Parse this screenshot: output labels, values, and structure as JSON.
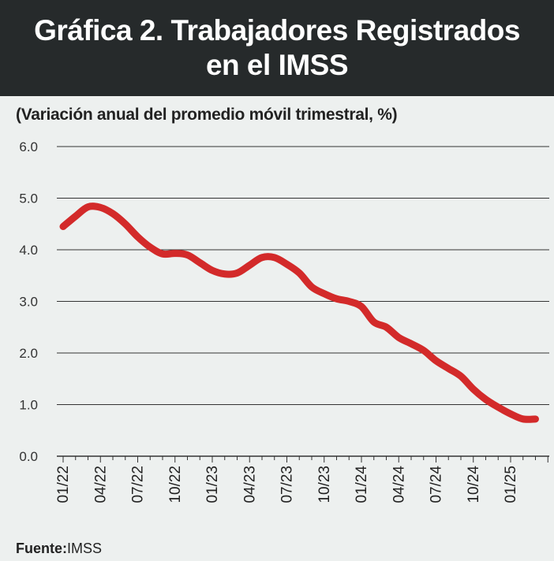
{
  "header": {
    "title_line1": "Gráfica 2. Trabajadores Registrados",
    "title_line2": "en el IMSS"
  },
  "subtitle": "(Variación anual del promedio móvil trimestral, %)",
  "source": {
    "label": "Fuente:",
    "value": "IMSS"
  },
  "colors": {
    "line": "#d32a2a",
    "header_bg": "#262a2b",
    "background": "#edf0ef",
    "grid": "#333333"
  },
  "chart_data": {
    "type": "line",
    "title": "",
    "xlabel": "",
    "ylabel": "",
    "ylim": [
      0,
      6
    ],
    "yticks": [
      "0.0",
      "1.0",
      "2.0",
      "3.0",
      "4.0",
      "5.0",
      "6.0"
    ],
    "grid": true,
    "xtick_labels": [
      "01/22",
      "04/22",
      "07/22",
      "10/22",
      "01/23",
      "04/23",
      "07/23",
      "10/23",
      "01/24",
      "04/24",
      "07/24",
      "10/24",
      "01/25"
    ],
    "series": [
      {
        "x": [
          "01/22",
          "02/22",
          "03/22",
          "04/22",
          "05/22",
          "06/22",
          "07/22",
          "08/22",
          "09/22",
          "10/22",
          "11/22",
          "12/22",
          "01/23",
          "02/23",
          "03/23",
          "04/23",
          "05/23",
          "06/23",
          "07/23",
          "08/23",
          "09/23",
          "10/23",
          "11/23",
          "12/23",
          "01/24",
          "02/24",
          "03/24",
          "04/24",
          "05/24",
          "06/24",
          "07/24",
          "08/24",
          "09/24",
          "10/24",
          "11/24",
          "12/24",
          "01/25",
          "02/25",
          "03/25"
        ],
        "values": [
          4.45,
          4.65,
          4.83,
          4.82,
          4.7,
          4.5,
          4.25,
          4.05,
          3.92,
          3.93,
          3.9,
          3.75,
          3.6,
          3.53,
          3.55,
          3.7,
          3.85,
          3.85,
          3.72,
          3.55,
          3.28,
          3.15,
          3.05,
          3.0,
          2.9,
          2.6,
          2.5,
          2.3,
          2.18,
          2.05,
          1.85,
          1.7,
          1.55,
          1.3,
          1.1,
          0.95,
          0.82,
          0.72,
          0.72
        ]
      }
    ]
  }
}
